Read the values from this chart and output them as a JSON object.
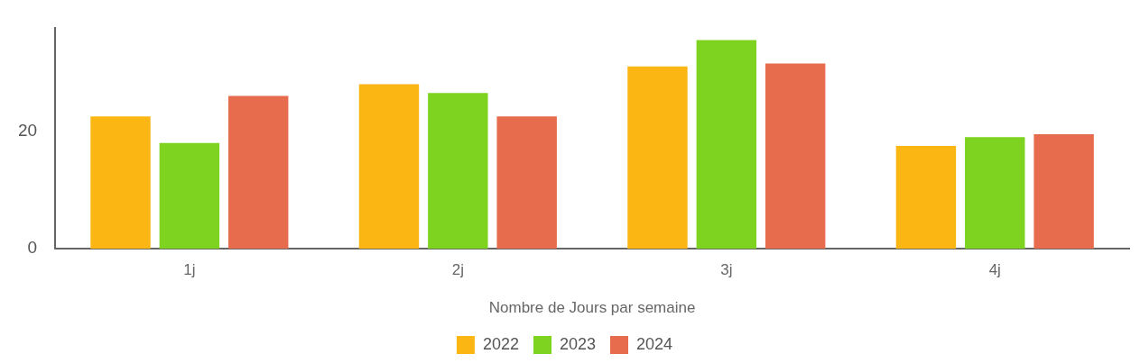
{
  "chart_data": {
    "type": "bar",
    "xlabel": "Nombre de Jours par semaine",
    "categories": [
      "1j",
      "2j",
      "3j",
      "4j"
    ],
    "series": [
      {
        "name": "2022",
        "color": "#fbb614",
        "values": [
          22.5,
          28,
          31,
          17.5
        ]
      },
      {
        "name": "2023",
        "color": "#7ed321",
        "values": [
          18,
          26.5,
          35.5,
          19
        ]
      },
      {
        "name": "2024",
        "color": "#e76b4d",
        "values": [
          26,
          22.5,
          31.5,
          19.5
        ]
      }
    ],
    "ylim": [
      0,
      37.5
    ],
    "yticks": [
      0,
      20
    ],
    "grid": false,
    "legend": "bottom"
  }
}
